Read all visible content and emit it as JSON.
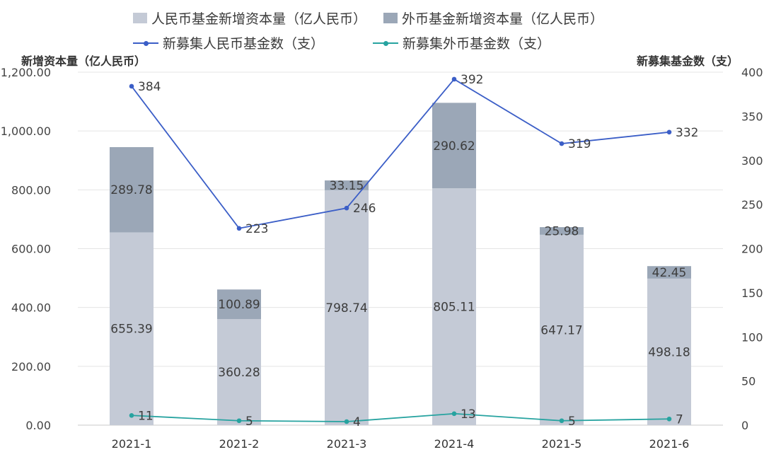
{
  "chart_data": {
    "type": "bar",
    "categories": [
      "2021-1",
      "2021-2",
      "2021-3",
      "2021-4",
      "2021-5",
      "2021-6"
    ],
    "series": [
      {
        "name": "人民币基金新增资本量（亿人民币）",
        "kind": "bar",
        "axis": "left",
        "stack": "capital",
        "color": "#c4cad6",
        "values": [
          655.39,
          360.28,
          798.74,
          805.11,
          647.17,
          498.18
        ]
      },
      {
        "name": "外币基金新增资本量（亿人民币）",
        "kind": "bar",
        "axis": "left",
        "stack": "capital",
        "color": "#9ba7b7",
        "values": [
          289.78,
          100.89,
          33.15,
          290.62,
          25.98,
          42.45
        ]
      },
      {
        "name": "新募集人民币基金数（支）",
        "kind": "line",
        "axis": "right",
        "color": "#3b5ec7",
        "values": [
          384,
          223,
          246,
          392,
          319,
          332
        ]
      },
      {
        "name": "新募集外币基金数（支）",
        "kind": "line",
        "axis": "right",
        "color": "#27a3a0",
        "values": [
          11,
          5,
          4,
          13,
          5,
          7
        ]
      }
    ],
    "y_left": {
      "label": "新增资本量（亿人民币）",
      "range": [
        0,
        1200
      ],
      "ticks": [
        "0.00",
        "200.00",
        "400.00",
        "600.00",
        "800.00",
        "1,000.00",
        "1,200.00"
      ]
    },
    "y_right": {
      "label": "新募集基金数（支）",
      "range": [
        0,
        400
      ],
      "ticks": [
        "0",
        "50",
        "100",
        "150",
        "200",
        "250",
        "300",
        "350",
        "400"
      ]
    },
    "grid": true,
    "legend_position": "top"
  }
}
